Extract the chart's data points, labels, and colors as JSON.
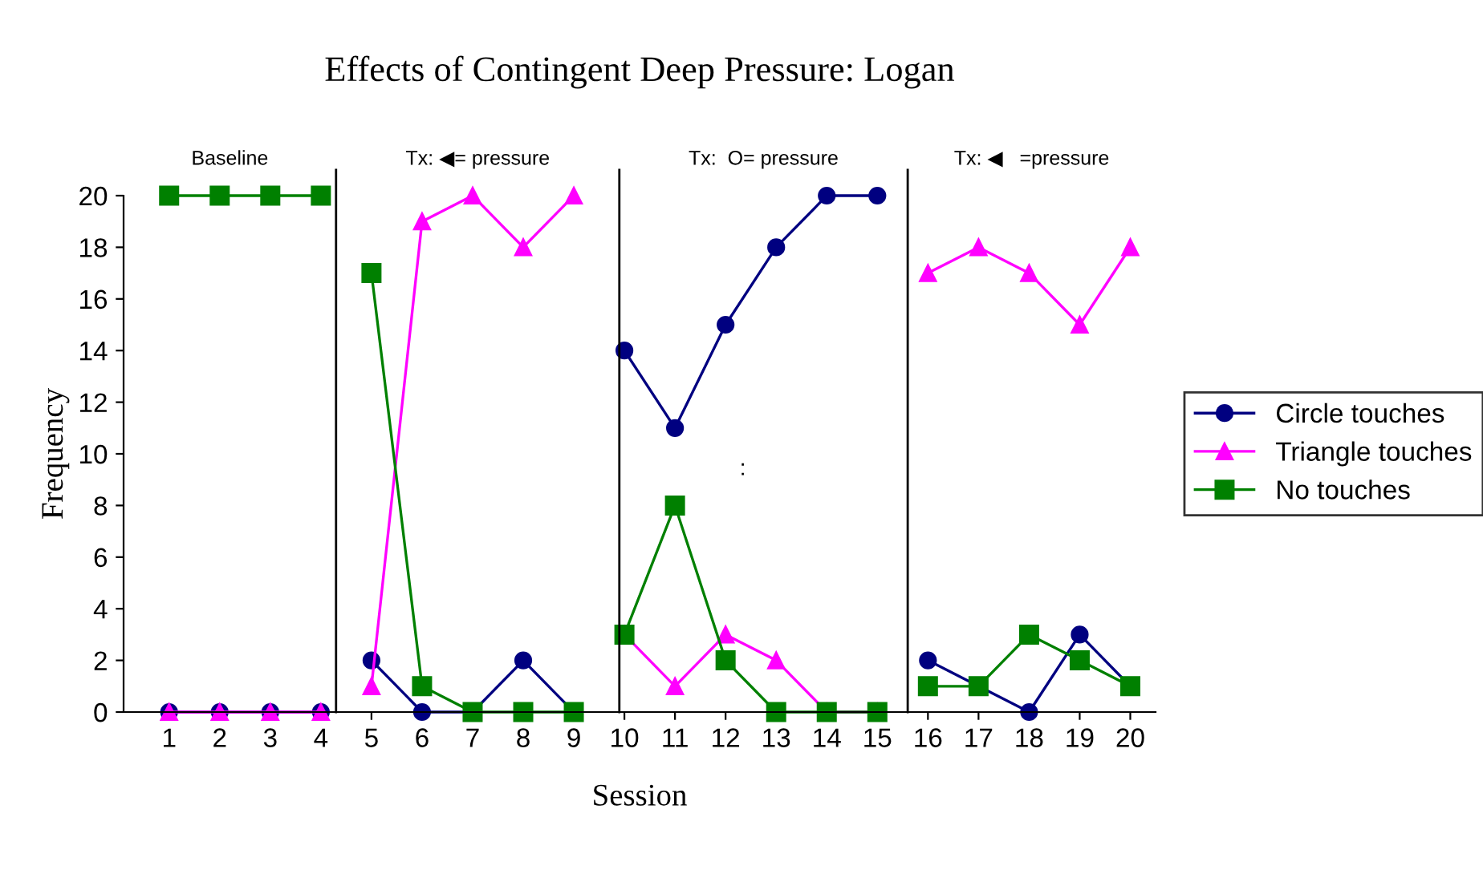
{
  "chart_data": {
    "type": "line",
    "title": "Effects of Contingent Deep Pressure: Logan",
    "xlabel": "Session",
    "ylabel": "Frequency",
    "x": [
      1,
      2,
      3,
      4,
      5,
      6,
      7,
      8,
      9,
      10,
      11,
      12,
      13,
      14,
      15,
      16,
      17,
      18,
      19,
      20
    ],
    "xlim": [
      0.1,
      20.5
    ],
    "xticks": [
      1,
      2,
      3,
      4,
      5,
      6,
      7,
      8,
      9,
      10,
      11,
      12,
      13,
      14,
      15,
      16,
      17,
      18,
      19,
      20
    ],
    "ylim": [
      0,
      20
    ],
    "yticks": [
      0,
      2,
      4,
      6,
      8,
      10,
      12,
      14,
      16,
      18,
      20
    ],
    "series": [
      {
        "name": "Circle touches",
        "color": "#000080",
        "marker": "circle",
        "values": [
          0,
          0,
          0,
          0,
          2,
          0,
          0,
          2,
          0,
          14,
          11,
          15,
          18,
          20,
          20,
          2,
          1,
          0,
          3,
          1
        ]
      },
      {
        "name": "Triangle touches",
        "color": "#ff00ff",
        "marker": "triangle",
        "values": [
          0,
          0,
          0,
          0,
          1,
          19,
          20,
          18,
          20,
          3,
          1,
          3,
          2,
          0,
          0,
          17,
          18,
          17,
          15,
          18
        ]
      },
      {
        "name": "No touches",
        "color": "#008000",
        "marker": "square",
        "values": [
          20,
          20,
          20,
          20,
          17,
          1,
          0,
          0,
          0,
          3,
          8,
          2,
          0,
          0,
          0,
          1,
          1,
          3,
          2,
          1
        ]
      }
    ],
    "ref_lines": [
      {
        "axis": "x",
        "value": 4.3,
        "color": "#000000"
      },
      {
        "axis": "x",
        "value": 9.9,
        "color": "#000000"
      },
      {
        "axis": "x",
        "value": 15.6,
        "color": "#000000"
      }
    ],
    "annotations": [
      "Baseline",
      "Tx: ◀= pressure",
      "Tx:  O= pressure",
      "Tx: ◀   =pressure",
      ":"
    ],
    "grid": false,
    "legend": "right",
    "line_style": "solid"
  }
}
